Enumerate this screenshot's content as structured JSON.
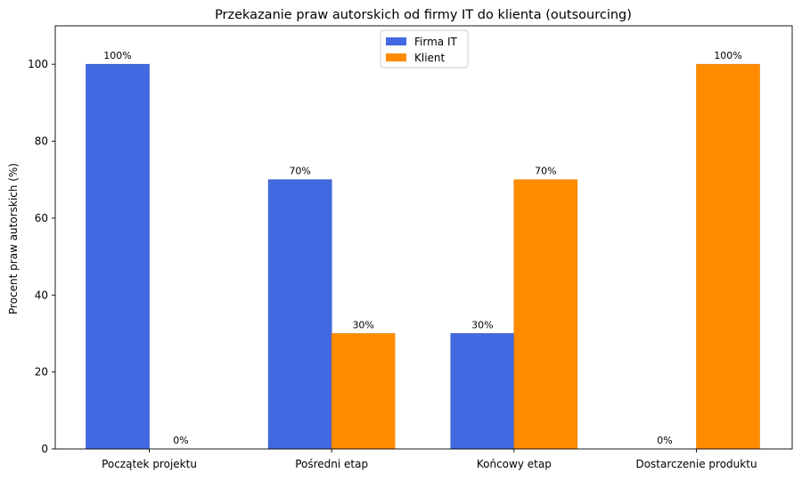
{
  "chart_data": {
    "type": "bar",
    "title": "Przekazanie praw autorskich od firmy IT do klienta (outsourcing)",
    "xlabel": "",
    "ylabel": "Procent praw autorskich (%)",
    "categories": [
      "Początek projektu",
      "Pośredni etap",
      "Końcowy etap",
      "Dostarczenie produktu"
    ],
    "series": [
      {
        "name": "Firma IT",
        "values": [
          100,
          70,
          30,
          0
        ],
        "color": "#4169E1",
        "labels": [
          "100%",
          "70%",
          "30%",
          "0%"
        ]
      },
      {
        "name": "Klient",
        "values": [
          0,
          30,
          70,
          100
        ],
        "color": "#FF8C00",
        "labels": [
          "0%",
          "30%",
          "70%",
          "100%"
        ]
      }
    ],
    "ylim": [
      0,
      110
    ],
    "yticks": [
      0,
      20,
      40,
      60,
      80,
      100
    ],
    "grid": false,
    "legend_position": "top-center"
  }
}
